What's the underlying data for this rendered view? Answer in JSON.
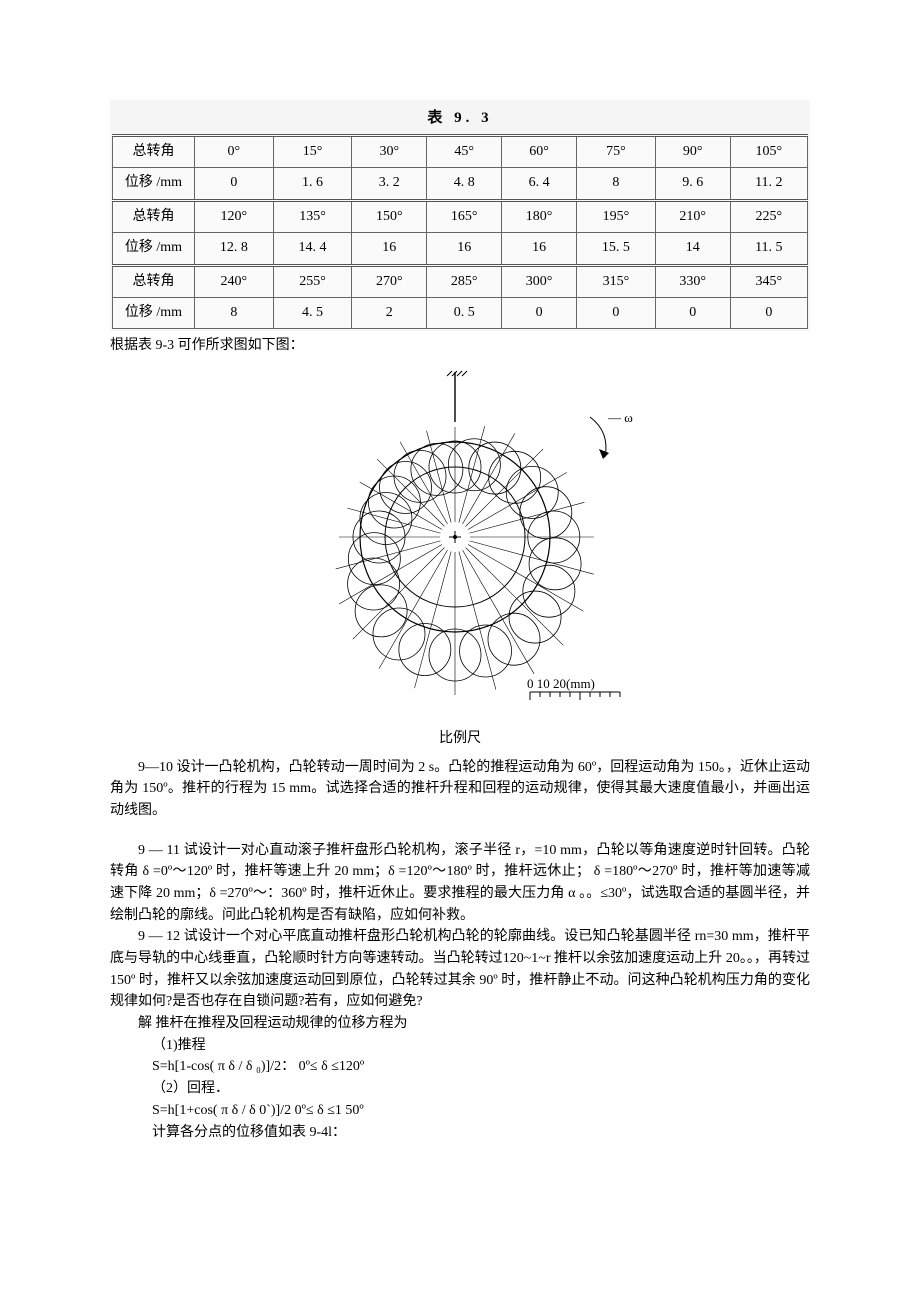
{
  "table": {
    "title": "表    9. 3",
    "row1_label": "总转角",
    "row1": [
      "0°",
      "15°",
      "30°",
      "45°",
      "60°",
      "75°",
      "90°",
      "105°"
    ],
    "row2_label": "位移 /mm",
    "row2": [
      "0",
      "1. 6",
      "3. 2",
      "4. 8",
      "6. 4",
      "8",
      "9. 6",
      "11. 2"
    ],
    "row3_label": "总转角",
    "row3": [
      "120°",
      "135°",
      "150°",
      "165°",
      "180°",
      "195°",
      "210°",
      "225°"
    ],
    "row4_label": "位移 /mm",
    "row4": [
      "12. 8",
      "14. 4",
      "16",
      "16",
      "16",
      "15. 5",
      "14",
      "11. 5"
    ],
    "row5_label": "总转角",
    "row5": [
      "240°",
      "255°",
      "270°",
      "285°",
      "300°",
      "315°",
      "330°",
      "345°"
    ],
    "row6_label": "位移 /mm",
    "row6": [
      "8",
      "4. 5",
      "2",
      "0. 5",
      "0",
      "0",
      "0",
      "0"
    ]
  },
  "caption_after_table": "根据表 9-3 可作所求图如下图：",
  "diagram": {
    "scale_text": "0   10   20(mm)",
    "scale_caption": "比例尺",
    "omega_label": "— ω"
  },
  "p9_10": "9—10 设计一凸轮机构，凸轮转动一周时间为 2 s。凸轮的推程运动角为 60º，回程运动角为 150。，近休止运动角为 150º。推杆的行程为 15 mm。试选择合适的推杆升程和回程的运动规律，使得其最大速度值最小，并画出运动线图。",
  "p9_11": "9 — 11 试设计一对心直动滚子推杆盘形凸轮机构，滚子半径 r，=10 mm，凸轮以等角速度逆时针回转。凸轮转角 δ =0º～120º 时，推杆等速上升 20 mm；δ =120º～180º 时，推杆远休止； δ =180º～270º 时，推杆等加速等减速下降 20 mm；δ =270º～：360º 时，推杆近休止。要求推程的最大压力角 α 。。≤30º，试选取合适的基圆半径，并绘制凸轮的廓线。问此凸轮机构是否有缺陷，应如何补救。",
  "p9_12": "9 — 12 试设计一个对心平底直动推杆盘形凸轮机构凸轮的轮廓曲线。设已知凸轮基圆半径 rn=30 mm，推杆平底与导轨的中心线垂直，凸轮顺时针方向等速转动。当凸轮转过120~1~r 推杆以余弦加速度运动上升 20。。，再转过 150º 时，推杆又以余弦加速度运动回到原位，凸轮转过其余 90º 时，推杆静止不动。问这种凸轮机构压力角的变化规律如何?是否也存在自锁问题?若有，应如何避免?",
  "solution": {
    "head": "解    推杆在推程及回程运动规律的位移方程为",
    "l1": "（1)推程",
    "l2": "S=h[1-cos( π δ / δ ₀)]/2：    0º≤ δ ≤120º",
    "l3": "（2）回程．",
    "l4": "S=h[1+cos( π δ / δ 0`)]/2      0º≤ δ ≤1 50º",
    "l5": "计算各分点的位移值如表 9-4l："
  }
}
